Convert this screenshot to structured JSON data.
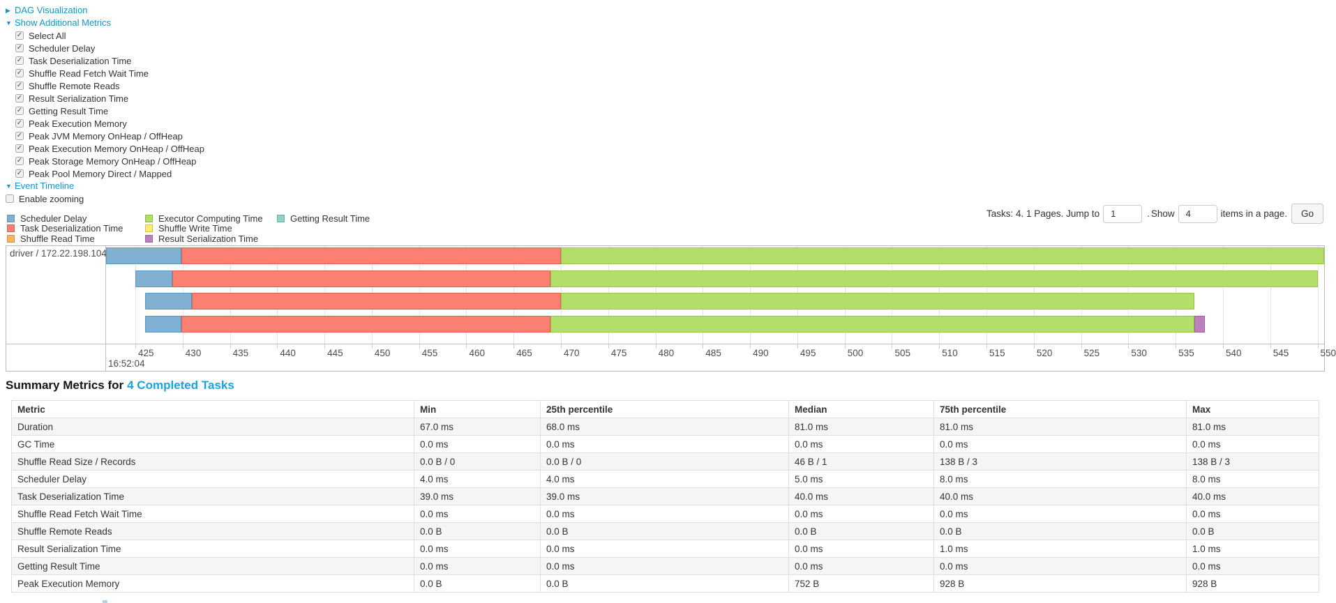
{
  "controls": {
    "dag": {
      "label": "DAG Visualization",
      "arrow": "▶"
    },
    "metrics": {
      "label": "Show Additional Metrics",
      "arrow": "▼"
    },
    "metric_checkboxes": [
      {
        "label": "Select All",
        "checked": true
      },
      {
        "label": "Scheduler Delay",
        "checked": true
      },
      {
        "label": "Task Deserialization Time",
        "checked": true
      },
      {
        "label": "Shuffle Read Fetch Wait Time",
        "checked": true
      },
      {
        "label": "Shuffle Remote Reads",
        "checked": true
      },
      {
        "label": "Result Serialization Time",
        "checked": true
      },
      {
        "label": "Getting Result Time",
        "checked": true
      },
      {
        "label": "Peak Execution Memory",
        "checked": true
      },
      {
        "label": "Peak JVM Memory OnHeap / OffHeap",
        "checked": true
      },
      {
        "label": "Peak Execution Memory OnHeap / OffHeap",
        "checked": true
      },
      {
        "label": "Peak Storage Memory OnHeap / OffHeap",
        "checked": true
      },
      {
        "label": "Peak Pool Memory Direct / Mapped",
        "checked": true
      }
    ],
    "timeline": {
      "label": "Event Timeline",
      "arrow": "▼"
    },
    "enable_zooming": {
      "label": "Enable zooming",
      "checked": false
    }
  },
  "pagination": {
    "prefix": "Tasks: 4. 1 Pages. Jump to",
    "jump_value": "1",
    "mid_dot": ".",
    "mid": "Show",
    "show_value": "4",
    "suffix": "items in a page.",
    "go_label": "Go"
  },
  "colors": {
    "link": "#1794c8",
    "title_link": "#1ba3dc"
  },
  "chart_data": {
    "type": "timeline",
    "group_label": "driver / 172.22.198.104",
    "axis": {
      "domain": [
        421.9,
        550.7
      ],
      "tick_min": 425,
      "tick_max": 550,
      "tick_step": 5,
      "major_label": "16:52:04"
    },
    "series": [
      {
        "key": "scheduler_delay",
        "label": "Scheduler Delay",
        "color": "#80B1D3",
        "border": "#5E96BD"
      },
      {
        "key": "task_deserialization",
        "label": "Task Deserialization Time",
        "color": "#FB8072",
        "border": "#E0604F"
      },
      {
        "key": "shuffle_read",
        "label": "Shuffle Read Time",
        "color": "#FDB462",
        "border": "#E99A3F"
      },
      {
        "key": "executor_computing",
        "label": "Executor Computing Time",
        "color": "#B3DE69",
        "border": "#95C83E"
      },
      {
        "key": "shuffle_write",
        "label": "Shuffle Write Time",
        "color": "#FFED6F",
        "border": "#E6D44F"
      },
      {
        "key": "result_serialization",
        "label": "Result Serialization Time",
        "color": "#BC80BD",
        "border": "#A05BA2"
      },
      {
        "key": "getting_result",
        "label": "Getting Result Time",
        "color": "#8DD3C7",
        "border": "#6BBFB0"
      }
    ],
    "tasks": [
      {
        "segments": [
          {
            "series": "scheduler_delay",
            "start": 421.9,
            "end": 429.9
          },
          {
            "series": "task_deserialization",
            "start": 429.9,
            "end": 470.0
          },
          {
            "series": "executor_computing",
            "start": 470.0,
            "end": 550.7
          }
        ]
      },
      {
        "segments": [
          {
            "series": "scheduler_delay",
            "start": 425.0,
            "end": 428.9
          },
          {
            "series": "task_deserialization",
            "start": 428.9,
            "end": 468.9
          },
          {
            "series": "executor_computing",
            "start": 468.9,
            "end": 550.0
          }
        ]
      },
      {
        "segments": [
          {
            "series": "scheduler_delay",
            "start": 426.0,
            "end": 431.0
          },
          {
            "series": "task_deserialization",
            "start": 431.0,
            "end": 470.0
          },
          {
            "series": "executor_computing",
            "start": 470.0,
            "end": 537.0
          }
        ]
      },
      {
        "segments": [
          {
            "series": "scheduler_delay",
            "start": 426.0,
            "end": 429.9
          },
          {
            "series": "task_deserialization",
            "start": 429.9,
            "end": 468.9
          },
          {
            "series": "executor_computing",
            "start": 468.9,
            "end": 537.0
          },
          {
            "series": "result_serialization",
            "start": 537.0,
            "end": 538.1
          }
        ]
      }
    ]
  },
  "summary": {
    "title_prefix": "Summary Metrics for",
    "title_link": "4 Completed Tasks",
    "columns": [
      "Metric",
      "Min",
      "25th percentile",
      "Median",
      "75th percentile",
      "Max"
    ],
    "rows": [
      {
        "metric": "Duration",
        "min": "67.0 ms",
        "p25": "68.0 ms",
        "median": "81.0 ms",
        "p75": "81.0 ms",
        "max": "81.0 ms"
      },
      {
        "metric": "GC Time",
        "min": "0.0 ms",
        "p25": "0.0 ms",
        "median": "0.0 ms",
        "p75": "0.0 ms",
        "max": "0.0 ms"
      },
      {
        "metric": "Shuffle Read Size / Records",
        "min": "0.0 B / 0",
        "p25": "0.0 B / 0",
        "median": "46 B / 1",
        "p75": "138 B / 3",
        "max": "138 B / 3"
      },
      {
        "metric": "Scheduler Delay",
        "min": "4.0 ms",
        "p25": "4.0 ms",
        "median": "5.0 ms",
        "p75": "8.0 ms",
        "max": "8.0 ms"
      },
      {
        "metric": "Task Deserialization Time",
        "min": "39.0 ms",
        "p25": "39.0 ms",
        "median": "40.0 ms",
        "p75": "40.0 ms",
        "max": "40.0 ms"
      },
      {
        "metric": "Shuffle Read Fetch Wait Time",
        "min": "0.0 ms",
        "p25": "0.0 ms",
        "median": "0.0 ms",
        "p75": "0.0 ms",
        "max": "0.0 ms"
      },
      {
        "metric": "Shuffle Remote Reads",
        "min": "0.0 B",
        "p25": "0.0 B",
        "median": "0.0 B",
        "p75": "0.0 B",
        "max": "0.0 B"
      },
      {
        "metric": "Result Serialization Time",
        "min": "0.0 ms",
        "p25": "0.0 ms",
        "median": "0.0 ms",
        "p75": "1.0 ms",
        "max": "1.0 ms"
      },
      {
        "metric": "Getting Result Time",
        "min": "0.0 ms",
        "p25": "0.0 ms",
        "median": "0.0 ms",
        "p75": "0.0 ms",
        "max": "0.0 ms"
      },
      {
        "metric": "Peak Execution Memory",
        "min": "0.0 B",
        "p25": "0.0 B",
        "median": "752 B",
        "p75": "928 B",
        "max": "928 B"
      }
    ]
  }
}
